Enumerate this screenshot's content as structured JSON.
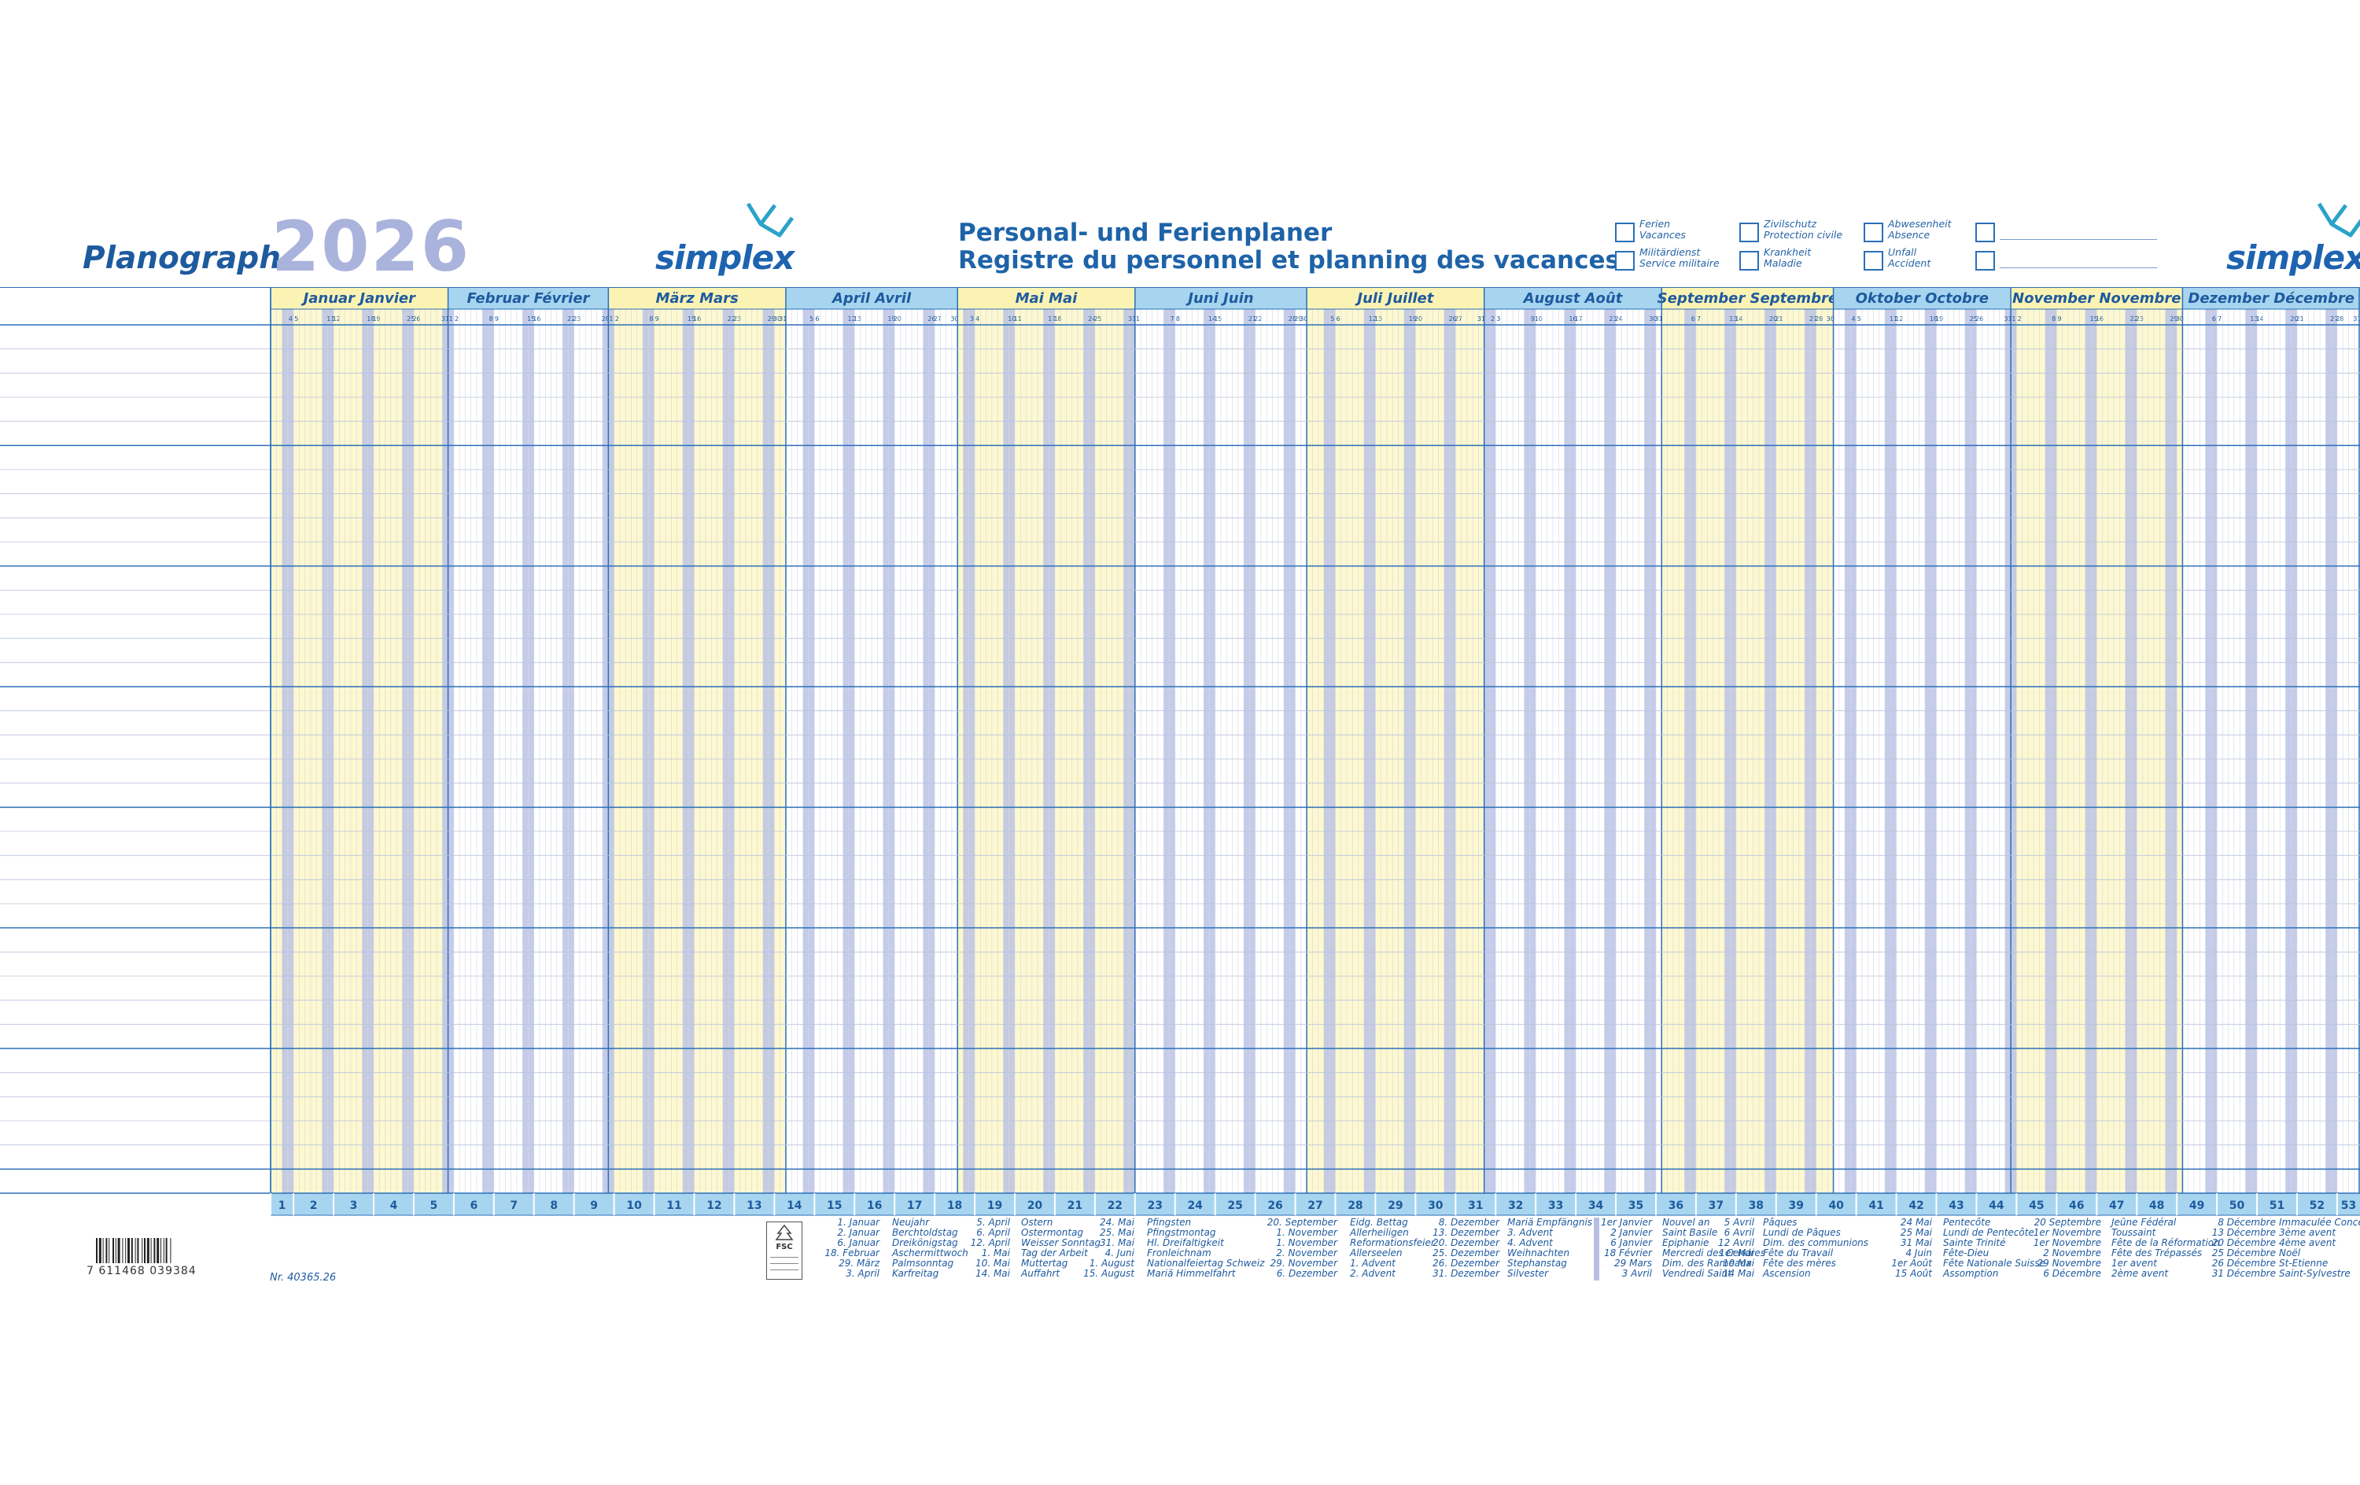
{
  "header": {
    "product": "Planograph",
    "year": "2026",
    "brand": "simplex",
    "title_de": "Personal- und Ferienplaner",
    "title_fr": "Registre du personnel et planning des vacances"
  },
  "legend": [
    {
      "line1": "Ferien",
      "line2": "Vacances"
    },
    {
      "line1": "Zivilschutz",
      "line2": "Protection civile"
    },
    {
      "line1": "Abwesenheit",
      "line2": "Absence"
    },
    {
      "line1": "",
      "line2": ""
    },
    {
      "line1": "Militärdienst",
      "line2": "Service militaire"
    },
    {
      "line1": "Krankheit",
      "line2": "Maladie"
    },
    {
      "line1": "Unfall",
      "line2": "Accident"
    },
    {
      "line1": "",
      "line2": ""
    }
  ],
  "months": [
    {
      "name": "Januar  Janvier",
      "days": 31,
      "first_weekday": 3,
      "tint": "yellow"
    },
    {
      "name": "Februar  Février",
      "days": 28,
      "first_weekday": 6,
      "tint": "white"
    },
    {
      "name": "März  Mars",
      "days": 31,
      "first_weekday": 6,
      "tint": "yellow"
    },
    {
      "name": "April  Avril",
      "days": 30,
      "first_weekday": 2,
      "tint": "white"
    },
    {
      "name": "Mai  Mai",
      "days": 31,
      "first_weekday": 4,
      "tint": "yellow"
    },
    {
      "name": "Juni  Juin",
      "days": 30,
      "first_weekday": 0,
      "tint": "white"
    },
    {
      "name": "Juli  Juillet",
      "days": 31,
      "first_weekday": 2,
      "tint": "yellow"
    },
    {
      "name": "August  Août",
      "days": 31,
      "first_weekday": 5,
      "tint": "white"
    },
    {
      "name": "September  Septembre",
      "days": 30,
      "first_weekday": 1,
      "tint": "yellow"
    },
    {
      "name": "Oktober  Octobre",
      "days": 31,
      "first_weekday": 3,
      "tint": "white"
    },
    {
      "name": "November  Novembre",
      "days": 30,
      "first_weekday": 6,
      "tint": "yellow"
    },
    {
      "name": "Dezember  Décembre",
      "days": 31,
      "first_weekday": 1,
      "tint": "white"
    }
  ],
  "week_numbers": [
    "1",
    "2",
    "3",
    "4",
    "5",
    "6",
    "7",
    "8",
    "9",
    "10",
    "11",
    "12",
    "13",
    "14",
    "15",
    "16",
    "17",
    "18",
    "19",
    "20",
    "21",
    "22",
    "23",
    "24",
    "25",
    "26",
    "27",
    "28",
    "29",
    "30",
    "31",
    "32",
    "33",
    "34",
    "35",
    "36",
    "37",
    "38",
    "39",
    "40",
    "41",
    "42",
    "43",
    "44",
    "45",
    "46",
    "47",
    "48",
    "49",
    "50",
    "51",
    "52",
    "53"
  ],
  "holidays_de": [
    {
      "dates": "1. Januar\n2. Januar\n6. Januar\n18. Februar\n29. März\n3. April",
      "names": "Neujahr\nBerchtoldstag\nDreikönigstag\nAschermittwoch\nPalmsonntag\nKarfreitag"
    },
    {
      "dates": "5. April\n6. April\n12. April\n1. Mai\n10. Mai\n14. Mai",
      "names": "Ostern\nOstermontag\nWeisser Sonntag\nTag der Arbeit\nMuttertag\nAuffahrt"
    },
    {
      "dates": "24. Mai\n25. Mai\n31. Mai\n4. Juni\n1. August\n15. August",
      "names": "Pfingsten\nPfingstmontag\nHl. Dreifaltigkeit\nFronleichnam\nNationalfeiertag Schweiz\nMariä Himmelfahrt"
    },
    {
      "dates": "20. September\n1. November\n1. November\n2. November\n29. November\n6. Dezember",
      "names": "Eidg. Bettag\nAllerheiligen\nReformationsfeier\nAllerseelen\n1. Advent\n2. Advent"
    },
    {
      "dates": "8. Dezember\n13. Dezember\n20. Dezember\n25. Dezember\n26. Dezember\n31. Dezember",
      "names": "Mariä Empfängnis\n3. Advent\n4. Advent\nWeihnachten\nStephanstag\nSilvester"
    }
  ],
  "holidays_fr": [
    {
      "dates": "1er Janvier\n2 Janvier\n6 Janvier\n18 Février\n29 Mars\n3 Avril",
      "names": "Nouvel an\nSaint Basile\nEpiphanie\nMercredi des Cendres\nDim. des Rameaux\nVendredi Saint"
    },
    {
      "dates": "5 Avril\n6 Avril\n12 Avril\n1er Mai\n10 Mai\n14 Mai",
      "names": "Pâques\nLundi de Pâques\nDim. des communions\nFête du Travail\nFête des mères\nAscension"
    },
    {
      "dates": "24 Mai\n25 Mai\n31 Mai\n4 Juin\n1er Août\n15 Août",
      "names": "Pentecôte\nLundi de Pentecôte\nSainte Trinité\nFête-Dieu\nFête Nationale Suisse\nAssomption"
    },
    {
      "dates": "20 Septembre\n1er Novembre\n1er Novembre\n2 Novembre\n29 Novembre\n6 Décembre",
      "names": "Jeûne Fédéral\nToussaint\nFête de la Réformation\nFête des Trépassés\n1er avent\n2ème avent"
    },
    {
      "dates": "8 Décembre\n13 Décembre\n20 Décembre\n25 Décembre\n26 Décembre\n31 Décembre",
      "names": "Immaculée Conception\n3ème avent\n4ème avent\nNoël\nSt-Etienne\nSaint-Sylvestre"
    }
  ],
  "barcode_number": "7 611468 039384",
  "article_number": "Nr. 40365.26",
  "fsc_label": "FSC",
  "colors": {
    "accent": "#1e63a8",
    "month_header_blue": "#a7d5f0",
    "month_header_yellow": "#fbf3b4",
    "yellow_tint": "#fdf8cf",
    "weekend_stripe": "#b7bfe4",
    "week_bar": "#a7d5f0"
  }
}
